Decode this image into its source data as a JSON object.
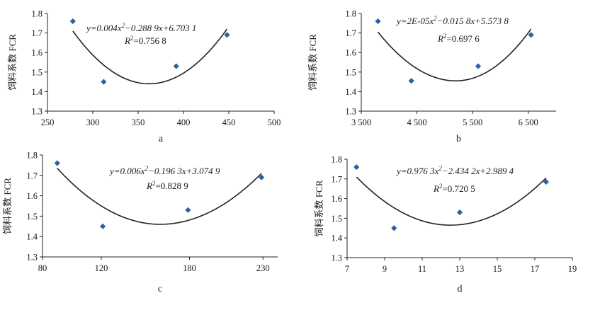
{
  "chart_data": [
    {
      "type": "scatter",
      "panel_label": "a",
      "ylabel": "饲料系数 FCR",
      "equation": "y=0.004x²−0.288 9x+6.703 1",
      "r2": "R²=0.756 8",
      "xlim": [
        250,
        500
      ],
      "ylim": [
        1.3,
        1.8
      ],
      "xticks": [
        250,
        300,
        350,
        400,
        450,
        500
      ],
      "xtick_labels": [
        "250",
        "300",
        "350",
        "400",
        "450",
        "500"
      ],
      "yticks": [
        1.3,
        1.4,
        1.5,
        1.6,
        1.7,
        1.8
      ],
      "ytick_labels": [
        "1.3",
        "1.4",
        "1.5",
        "1.6",
        "1.7",
        "1.8"
      ],
      "points": [
        [
          278,
          1.76
        ],
        [
          312,
          1.45
        ],
        [
          392,
          1.53
        ],
        [
          448,
          1.69
        ]
      ],
      "curve": {
        "x0": 278,
        "x1": 448,
        "vertex_x": 362,
        "vertex_y": 1.44,
        "end_left_y": 1.71,
        "end_right_y": 1.72
      },
      "grid": false
    },
    {
      "type": "scatter",
      "panel_label": "b",
      "ylabel": "饲料系数 FCR",
      "equation": "y=2E-05x²−0.015 8x+5.573 8",
      "r2": "R²=0.697 6",
      "xlim": [
        3500,
        7000
      ],
      "ylim": [
        1.3,
        1.8
      ],
      "xticks": [
        3500,
        4500,
        5500,
        6500
      ],
      "xtick_labels": [
        "3 500",
        "4 500",
        "5 500",
        "6 500"
      ],
      "yticks": [
        1.3,
        1.4,
        1.5,
        1.6,
        1.7,
        1.8
      ],
      "ytick_labels": [
        "1.3",
        "1.4",
        "1.5",
        "1.6",
        "1.7",
        "1.8"
      ],
      "points": [
        [
          3800,
          1.76
        ],
        [
          4400,
          1.455
        ],
        [
          5600,
          1.53
        ],
        [
          6550,
          1.69
        ]
      ],
      "curve": {
        "x0": 3800,
        "x1": 6550,
        "vertex_x": 5200,
        "vertex_y": 1.455,
        "end_left_y": 1.705,
        "end_right_y": 1.72
      },
      "grid": false
    },
    {
      "type": "scatter",
      "panel_label": "c",
      "ylabel": "饲料系数 FCR",
      "equation": "y=0.006x²−0.196 3x+3.074 9",
      "r2": "R²=0.828 9",
      "xlim": [
        80,
        240
      ],
      "ylim": [
        1.3,
        1.8
      ],
      "xticks": [
        80,
        120,
        180,
        230
      ],
      "xtick_labels": [
        "80",
        "120",
        "180",
        "230"
      ],
      "yticks": [
        1.3,
        1.4,
        1.5,
        1.6,
        1.7,
        1.8
      ],
      "ytick_labels": [
        "1.3",
        "1.4",
        "1.5",
        "1.6",
        "1.7",
        "1.8"
      ],
      "points": [
        [
          90,
          1.76
        ],
        [
          121,
          1.45
        ],
        [
          179,
          1.53
        ],
        [
          229,
          1.69
        ]
      ],
      "curve": {
        "x0": 90,
        "x1": 229,
        "vertex_x": 160,
        "vertex_y": 1.46,
        "end_left_y": 1.735,
        "end_right_y": 1.71
      },
      "grid": false
    },
    {
      "type": "scatter",
      "panel_label": "d",
      "ylabel": "饲料系数 FCR",
      "equation": "y=0.976 3x²−2.434 2x+2.989 4",
      "r2": "R²=0.720 5",
      "xlim": [
        7,
        19
      ],
      "ylim": [
        1.3,
        1.8
      ],
      "xticks": [
        7,
        9,
        11,
        13,
        15,
        17,
        19
      ],
      "xtick_labels": [
        "7",
        "9",
        "11",
        "13",
        "15",
        "17",
        "19"
      ],
      "yticks": [
        1.3,
        1.4,
        1.5,
        1.6,
        1.7,
        1.8
      ],
      "ytick_labels": [
        "1.3",
        "1.4",
        "1.5",
        "1.6",
        "1.7",
        "1.8"
      ],
      "points": [
        [
          7.5,
          1.76
        ],
        [
          9.5,
          1.45
        ],
        [
          13,
          1.53
        ],
        [
          17.6,
          1.685
        ]
      ],
      "curve": {
        "x0": 7.5,
        "x1": 17.6,
        "vertex_x": 12.5,
        "vertex_y": 1.465,
        "end_left_y": 1.71,
        "end_right_y": 1.705
      },
      "grid": false
    }
  ]
}
